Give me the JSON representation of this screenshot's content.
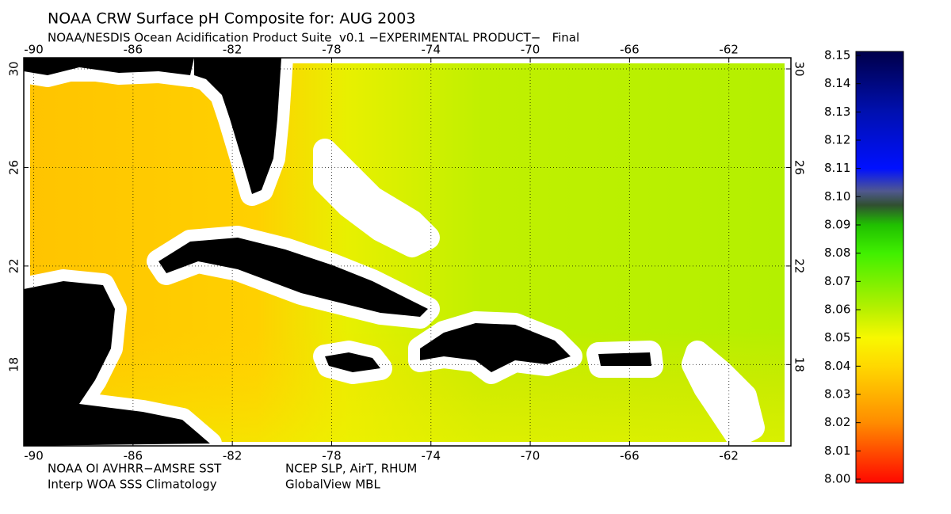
{
  "chart_data": {
    "type": "map",
    "title": "NOAA CRW Surface pH Composite for: AUG 2003",
    "subtitle": "NOAA/NESDIS Ocean Acidification Product Suite  v0.1 −EXPERIMENTAL PRODUCT−   Final",
    "xlim": [
      -90.4,
      -59.5
    ],
    "ylim": [
      14.7,
      30.45
    ],
    "xticks": [
      -90,
      -86,
      -82,
      -78,
      -74,
      -70,
      -66,
      -62
    ],
    "yticks": [
      30,
      26,
      22,
      18
    ],
    "grid": true,
    "colorbar": {
      "lim": [
        8.0,
        8.15
      ],
      "ticks": [
        {
          "value": 8.0,
          "label": "8.00"
        },
        {
          "value": 8.01,
          "label": "8.01"
        },
        {
          "value": 8.02,
          "label": "8.02"
        },
        {
          "value": 8.03,
          "label": "8.03"
        },
        {
          "value": 8.04,
          "label": "8.04"
        },
        {
          "value": 8.05,
          "label": "8.05"
        },
        {
          "value": 8.06,
          "label": "8.06"
        },
        {
          "value": 8.07,
          "label": "8.07"
        },
        {
          "value": 8.08,
          "label": "8.08"
        },
        {
          "value": 8.09,
          "label": "8.09"
        },
        {
          "value": 8.1,
          "label": "8.10"
        },
        {
          "value": 8.11,
          "label": "8.11"
        },
        {
          "value": 8.12,
          "label": "8.12"
        },
        {
          "value": 8.13,
          "label": "8.13"
        },
        {
          "value": 8.14,
          "label": "8.14"
        },
        {
          "value": 8.15,
          "label": "8.15"
        }
      ],
      "colorscale": [
        [
          8.0,
          "#ff1000"
        ],
        [
          8.02,
          "#ff8c00"
        ],
        [
          8.04,
          "#ffd800"
        ],
        [
          8.05,
          "#f8f800"
        ],
        [
          8.06,
          "#b8f000"
        ],
        [
          8.08,
          "#40f000"
        ],
        [
          8.09,
          "#20c000"
        ],
        [
          8.097,
          "#305030"
        ],
        [
          8.102,
          "#505890"
        ],
        [
          8.11,
          "#0010ff"
        ],
        [
          8.13,
          "#0010b0"
        ],
        [
          8.15,
          "#000050"
        ]
      ]
    },
    "footer": [
      "NOAA OI AVHRR−AMSRE SST",
      "NCEP SLP, AirT, RHUM",
      "Interp WOA SSS Climatology",
      "GlobalView MBL"
    ]
  }
}
